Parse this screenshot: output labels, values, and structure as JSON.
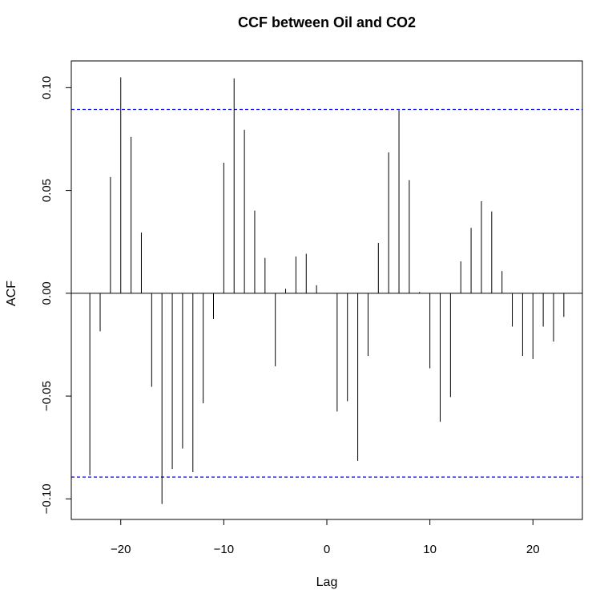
{
  "chart_data": {
    "type": "bar",
    "title": "CCF between Oil and CO2",
    "xlabel": "Lag",
    "ylabel": "ACF",
    "xlim": [
      -24.8,
      24.8
    ],
    "ylim": [
      -0.11,
      0.113
    ],
    "x_ticks": [
      -20,
      -10,
      0,
      10,
      20
    ],
    "x_tick_labels": [
      "−20",
      "−10",
      "0",
      "10",
      "20"
    ],
    "y_ticks": [
      -0.1,
      -0.05,
      0.0,
      0.05,
      0.1
    ],
    "y_tick_labels": [
      "−0.10",
      "−0.05",
      "0.00",
      "0.05",
      "0.10"
    ],
    "confidence_bounds": [
      0.0894,
      -0.0894
    ],
    "confidence_color": "#0000ff",
    "lags": [
      -23,
      -22,
      -21,
      -20,
      -19,
      -18,
      -17,
      -16,
      -15,
      -14,
      -13,
      -12,
      -11,
      -10,
      -9,
      -8,
      -7,
      -6,
      -5,
      -4,
      -3,
      -2,
      -1,
      0,
      1,
      2,
      3,
      4,
      5,
      6,
      7,
      8,
      9,
      10,
      11,
      12,
      13,
      14,
      15,
      16,
      17,
      18,
      19,
      20,
      21,
      22,
      23
    ],
    "values": [
      -0.0885,
      -0.0185,
      0.0565,
      0.105,
      0.076,
      0.0295,
      -0.0455,
      -0.1025,
      -0.0855,
      -0.0755,
      -0.087,
      -0.0535,
      -0.0125,
      0.0635,
      0.1045,
      0.0795,
      0.0402,
      0.0172,
      -0.0355,
      0.0022,
      0.0179,
      0.0192,
      0.0039,
      0.0002,
      -0.0575,
      -0.0525,
      -0.0815,
      -0.0305,
      0.0245,
      0.0685,
      0.089,
      0.055,
      0.0006,
      -0.0365,
      -0.0625,
      -0.0505,
      0.0155,
      0.0318,
      0.0448,
      0.0398,
      0.0108,
      -0.0162,
      -0.0305,
      -0.032,
      -0.0162,
      -0.0235,
      -0.0115
    ]
  }
}
